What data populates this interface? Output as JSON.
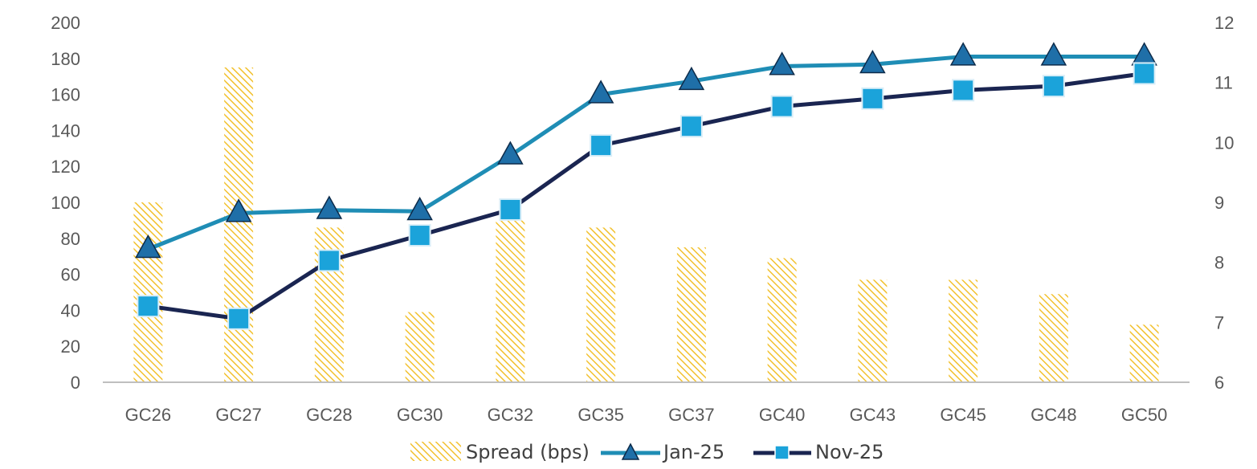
{
  "chart_data": {
    "type": "bar+line",
    "title": "",
    "categories": [
      "GC26",
      "GC27",
      "GC28",
      "GC30",
      "GC32",
      "GC35",
      "GC37",
      "GC40",
      "GC43",
      "GC45",
      "GC48",
      "GC50"
    ],
    "left_axis": {
      "min": 0,
      "max": 200,
      "step": 20,
      "ticks": [
        "0",
        "20",
        "40",
        "60",
        "80",
        "100",
        "120",
        "140",
        "160",
        "180",
        "200"
      ]
    },
    "right_axis": {
      "min": 6,
      "max": 12,
      "step": 1,
      "ticks": [
        "6",
        "7",
        "8",
        "9",
        "10",
        "11",
        "12"
      ]
    },
    "series": [
      {
        "name": "Spread (bps)",
        "type": "bar",
        "axis": "left",
        "color": "#F2C12E",
        "values": [
          100,
          175,
          86,
          39,
          90,
          86,
          75,
          69,
          57,
          57,
          49,
          32
        ]
      },
      {
        "name": "Jan-25",
        "type": "line",
        "axis": "right",
        "color": "#1F8DB5",
        "marker": "triangle",
        "marker_fill": "#1F6FA8",
        "values": [
          8.22,
          8.82,
          8.87,
          8.85,
          9.78,
          10.8,
          11.02,
          11.27,
          11.3,
          11.43,
          11.43,
          11.43
        ]
      },
      {
        "name": "Nov-25",
        "type": "line",
        "axis": "right",
        "color": "#1A2551",
        "marker": "square",
        "marker_fill": "#1BA3DA",
        "values": [
          7.27,
          7.06,
          8.03,
          8.45,
          8.88,
          9.95,
          10.27,
          10.6,
          10.73,
          10.87,
          10.94,
          11.15
        ]
      }
    ],
    "legend": {
      "position": "bottom",
      "entries": [
        "Spread (bps)",
        "Jan-25",
        "Nov-25"
      ]
    },
    "grid": false
  }
}
